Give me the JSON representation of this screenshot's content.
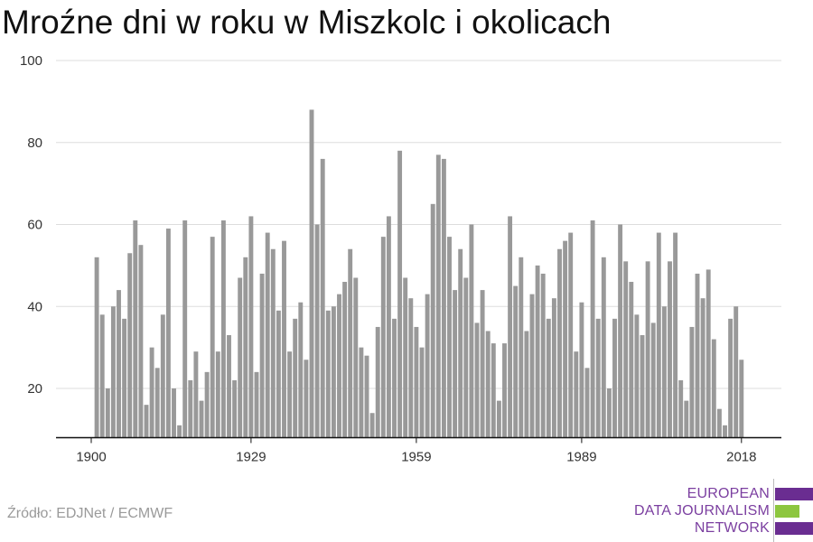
{
  "title": "Mroźne dni w roku w Miszkolc i okolicach",
  "source": "Źródło: EDJNet / ECMWF",
  "logo": {
    "line1": "EUROPEAN",
    "line2": "DATA JOURNALISM",
    "line3": "NETWORK",
    "colors": {
      "purple": "#6a2d91",
      "green": "#8dc63f"
    }
  },
  "chart_data": {
    "type": "bar",
    "title": "Mroźne dni w roku w Miszkolc i okolicach",
    "xlabel": "",
    "ylabel": "",
    "bar_color": "#999999",
    "grid": true,
    "x_ticks": [
      1900,
      1929,
      1959,
      1989,
      2018
    ],
    "y_ticks": [
      20,
      40,
      60,
      80,
      100
    ],
    "ylim": [
      8,
      100
    ],
    "x": [
      1900,
      1901,
      1902,
      1903,
      1904,
      1905,
      1906,
      1907,
      1908,
      1909,
      1910,
      1911,
      1912,
      1913,
      1914,
      1915,
      1916,
      1917,
      1918,
      1919,
      1920,
      1921,
      1922,
      1923,
      1924,
      1925,
      1926,
      1927,
      1928,
      1929,
      1930,
      1931,
      1932,
      1933,
      1934,
      1935,
      1936,
      1937,
      1938,
      1939,
      1940,
      1941,
      1942,
      1943,
      1944,
      1945,
      1946,
      1947,
      1948,
      1949,
      1950,
      1951,
      1952,
      1953,
      1954,
      1955,
      1956,
      1957,
      1958,
      1959,
      1960,
      1961,
      1962,
      1963,
      1964,
      1965,
      1966,
      1967,
      1968,
      1969,
      1970,
      1971,
      1972,
      1973,
      1974,
      1975,
      1976,
      1977,
      1978,
      1979,
      1980,
      1981,
      1982,
      1983,
      1984,
      1985,
      1986,
      1987,
      1988,
      1989,
      1990,
      1991,
      1992,
      1993,
      1994,
      1995,
      1996,
      1997,
      1998,
      1999,
      2000,
      2001,
      2002,
      2003,
      2004,
      2005,
      2006,
      2007,
      2008,
      2009,
      2010,
      2011,
      2012,
      2013,
      2014,
      2015,
      2016,
      2017,
      2018,
      2019
    ],
    "values": [
      8,
      52,
      38,
      20,
      40,
      44,
      37,
      53,
      61,
      55,
      16,
      30,
      25,
      38,
      59,
      20,
      11,
      61,
      22,
      29,
      17,
      24,
      57,
      29,
      61,
      33,
      22,
      47,
      52,
      62,
      24,
      48,
      58,
      54,
      39,
      56,
      29,
      37,
      41,
      27,
      88,
      60,
      76,
      39,
      40,
      43,
      46,
      54,
      47,
      30,
      28,
      14,
      35,
      57,
      62,
      37,
      78,
      47,
      42,
      35,
      30,
      43,
      65,
      77,
      76,
      57,
      44,
      54,
      47,
      60,
      36,
      44,
      34,
      31,
      17,
      31,
      62,
      45,
      52,
      34,
      43,
      50,
      48,
      37,
      42,
      54,
      56,
      58,
      29,
      41,
      25,
      61,
      37,
      52,
      20,
      37,
      60,
      51,
      46,
      38,
      33,
      51,
      36,
      58,
      40,
      51,
      58,
      22,
      17,
      35,
      48,
      42,
      49,
      32,
      15,
      11,
      37,
      40,
      27,
      8
    ]
  }
}
